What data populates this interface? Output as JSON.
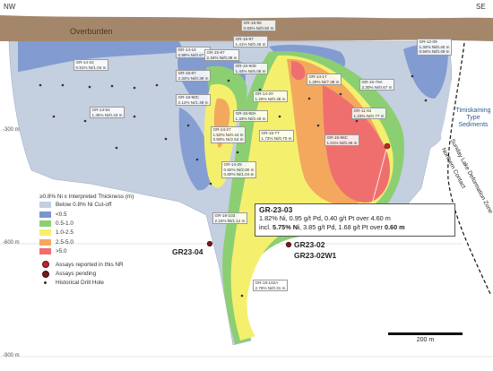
{
  "corners": {
    "left": "NW",
    "right": "SE"
  },
  "depth_labels": [
    "-300 m",
    "-600 m",
    "-900 m"
  ],
  "overburden_label": "Overburden",
  "lake_label": "Timiskaming Type Sediments",
  "contact_label_1": "Sunday Lake Deformation Zone",
  "contact_label_2": "Northern Contact",
  "highlight": {
    "title": "GR-23-03",
    "line1": "1.82% Ni, 0.95 g/t Pd, 0.40 g/t Pt over 4.60 m",
    "line2_prefix": "incl. ",
    "line2_bold1": "5.75% Ni",
    "line2_mid": ", 3.85 g/t Pd, 1.68 g/t Pt over ",
    "line2_bold2": "0.60 m"
  },
  "holes": {
    "h1": "GR23-04",
    "h2": "GR23-02",
    "h3": "GR23-02W1"
  },
  "callouts": [
    {
      "id": "c1",
      "text": "GR-15-96\n0.83% Ni/0.82 m"
    },
    {
      "id": "c2",
      "text": "GR-12-09\n1.34% Ni/0.40 m\n0.94% Ni/0.49 m"
    },
    {
      "id": "c3",
      "text": "GR-14-22\n0.91% Ni/1.04 m"
    },
    {
      "id": "c4",
      "text": "GR-14-16\n0.99% Ni/0.67 m"
    },
    {
      "id": "c5",
      "text": "GR-15-97\n1.41% Ni/0.45 m"
    },
    {
      "id": "c6",
      "text": "GR-15-87\n2.34% Ni/0.39 m"
    },
    {
      "id": "c7",
      "text": "GR-15-87\n2.34% Ni/0.39 m"
    },
    {
      "id": "c8",
      "text": "GR-18-90D\n1.44% Ni/5.06 m"
    },
    {
      "id": "c9",
      "text": "GR-14-17\n1.29% Ni/7.38 m"
    },
    {
      "id": "c10",
      "text": "GR-15-79A\n2.30% Ni/0.67 m"
    },
    {
      "id": "c11",
      "text": "GR-18-90C\n2.12% Ni/1.49 m"
    },
    {
      "id": "c12",
      "text": "GR-14-20\n1.26% Ni/0.38 m"
    },
    {
      "id": "c13",
      "text": "GR-14-54\n1.35% Ni/0.43 m"
    },
    {
      "id": "c14",
      "text": "GR-15-90A\n1.33% Ni/3.46 m"
    },
    {
      "id": "c15",
      "text": "GR-11-84\n1.23% Ni/0.77 m"
    },
    {
      "id": "c16",
      "text": "GR-14-27\n1.52% Ni/0.44 m\n0.83% Ni/2.54 m"
    },
    {
      "id": "c17",
      "text": "GR-15-77\n1.73% Ni/0.70 m"
    },
    {
      "id": "c18",
      "text": "GR-15-96C\n1.01% Ni/0.46 m"
    },
    {
      "id": "c19",
      "text": "GR-14-25\n0.82% Ni/2.80 m\n0.80% Ni/1.04 m"
    },
    {
      "id": "c20",
      "text": "GR-18-103\n2.24% Ni/1.12 m"
    },
    {
      "id": "c21",
      "text": "GR-18-102A\n2.76% Ni/0.31 m"
    }
  ],
  "legend": {
    "title": "≥0.8% Ni x Interpreted Thickness (m)",
    "items": [
      {
        "label": "Below 0.8% Ni Cut-off",
        "color": "#c4cfe0"
      },
      {
        "label": "<0.5",
        "color": "#7b96cf"
      },
      {
        "label": "0.5-1.0",
        "color": "#8ccf72"
      },
      {
        "label": "1.0-2.5",
        "color": "#f5ef6e"
      },
      {
        "label": "2.5-5.0",
        "color": "#f4a85e"
      },
      {
        "label": ">5.0",
        "color": "#ef6f6f"
      }
    ],
    "symbols": [
      {
        "label": "Assays reported in this NR",
        "color": "#c0262a"
      },
      {
        "label": "Assays pending",
        "color": "#7a1a1a"
      },
      {
        "label": "Historical Drill Hole",
        "color": "#333333"
      }
    ]
  },
  "scale_label": "200 m",
  "colors": {
    "overburden": "#a4876b",
    "sediments": "#ffffff",
    "grid": "#dddddd"
  }
}
